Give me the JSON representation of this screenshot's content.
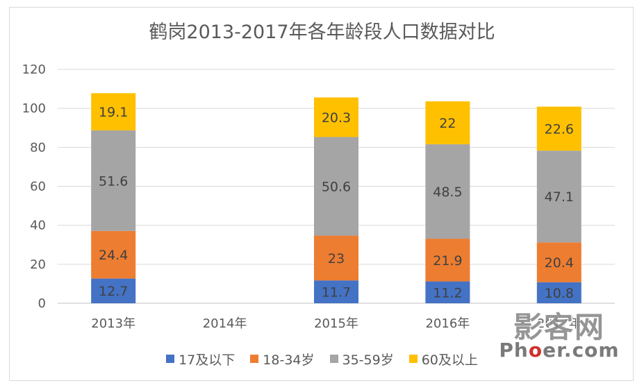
{
  "chart_data": {
    "type": "bar",
    "stacked": true,
    "title": "鹤岗2013-2017年各年龄段人口数据对比",
    "categories": [
      "2013年",
      "2014年",
      "2015年",
      "2016年",
      "2017年"
    ],
    "series": [
      {
        "name": "17及以下",
        "color": "#4472c4",
        "values": [
          12.7,
          null,
          11.7,
          11.2,
          10.8
        ],
        "labels": [
          "12.7",
          "",
          "11.7",
          "11.2",
          "10.8"
        ]
      },
      {
        "name": "18-34岁",
        "color": "#ed7d31",
        "values": [
          24.4,
          null,
          23,
          21.9,
          20.4
        ],
        "labels": [
          "24.4",
          "",
          "23",
          "21.9",
          "20.4"
        ]
      },
      {
        "name": "35-59岁",
        "color": "#a5a5a5",
        "values": [
          51.6,
          null,
          50.6,
          48.5,
          47.1
        ],
        "labels": [
          "51.6",
          "",
          "50.6",
          "48.5",
          "47.1"
        ]
      },
      {
        "name": "60及以上",
        "color": "#ffc000",
        "values": [
          19.1,
          null,
          20.3,
          22,
          22.6
        ],
        "labels": [
          "19.1",
          "",
          "20.3",
          "22",
          "22.6"
        ]
      }
    ],
    "ylim": [
      0,
      120
    ],
    "yticks": [
      "0",
      "20",
      "40",
      "60",
      "80",
      "100",
      "120"
    ],
    "grid": true,
    "legend_position": "bottom"
  },
  "watermark": {
    "main": "影客网",
    "sub_before": "Ph",
    "sub_o": "o",
    "sub_after": "er.com"
  }
}
